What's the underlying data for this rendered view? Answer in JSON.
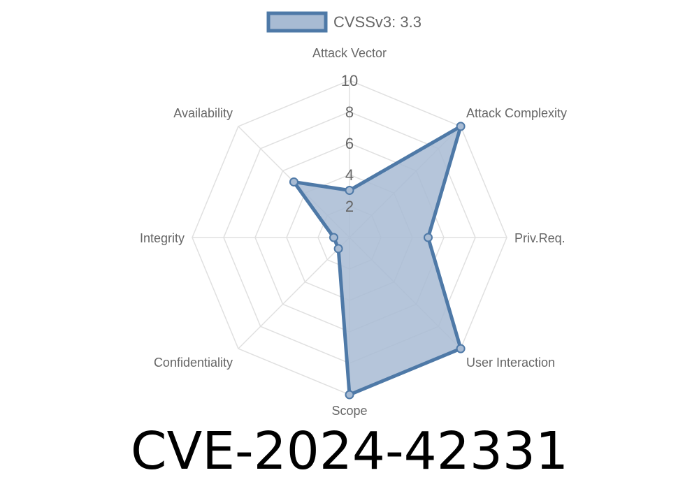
{
  "title": "CVE-2024-42331",
  "chart_data": {
    "type": "radar",
    "categories": [
      "Attack Vector",
      "Attack Complexity",
      "Priv.Req.",
      "User Interaction",
      "Scope",
      "Confidentiality",
      "Integrity",
      "Availability"
    ],
    "series": [
      {
        "name": "CVSSv3: 3.3",
        "values": [
          3,
          10,
          5,
          10,
          10,
          1,
          1,
          5
        ]
      }
    ],
    "rlim": [
      0,
      10
    ],
    "ticks": [
      "2",
      "4",
      "6",
      "8",
      "10"
    ],
    "legend": "top",
    "colors": {
      "line": "#4e79a7",
      "fill": "#a8bbd3",
      "grid": "#e0e0e0"
    }
  }
}
